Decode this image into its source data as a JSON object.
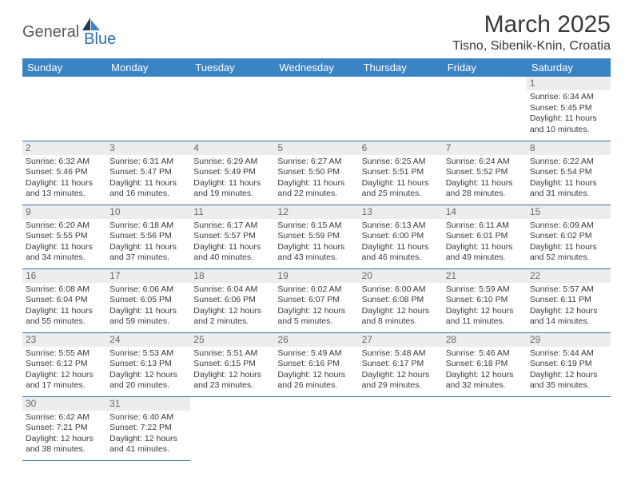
{
  "logo": {
    "general": "General",
    "blue": "Blue"
  },
  "title": "March 2025",
  "location": "Tisno, Sibenik-Knin, Croatia",
  "colors": {
    "header_bg": "#3b84c4",
    "header_text": "#ffffff",
    "rule": "#2f6faa",
    "day_bg": "#ededed",
    "day_text": "#6a6a6a",
    "body_text": "#3a3a3a",
    "logo_blue": "#2f6faa",
    "logo_gray": "#5a5a5a"
  },
  "weekdays": [
    "Sunday",
    "Monday",
    "Tuesday",
    "Wednesday",
    "Thursday",
    "Friday",
    "Saturday"
  ],
  "weeks": [
    [
      null,
      null,
      null,
      null,
      null,
      null,
      {
        "n": "1",
        "sr": "Sunrise: 6:34 AM",
        "ss": "Sunset: 5:45 PM",
        "dl1": "Daylight: 11 hours",
        "dl2": "and 10 minutes."
      }
    ],
    [
      {
        "n": "2",
        "sr": "Sunrise: 6:32 AM",
        "ss": "Sunset: 5:46 PM",
        "dl1": "Daylight: 11 hours",
        "dl2": "and 13 minutes."
      },
      {
        "n": "3",
        "sr": "Sunrise: 6:31 AM",
        "ss": "Sunset: 5:47 PM",
        "dl1": "Daylight: 11 hours",
        "dl2": "and 16 minutes."
      },
      {
        "n": "4",
        "sr": "Sunrise: 6:29 AM",
        "ss": "Sunset: 5:49 PM",
        "dl1": "Daylight: 11 hours",
        "dl2": "and 19 minutes."
      },
      {
        "n": "5",
        "sr": "Sunrise: 6:27 AM",
        "ss": "Sunset: 5:50 PM",
        "dl1": "Daylight: 11 hours",
        "dl2": "and 22 minutes."
      },
      {
        "n": "6",
        "sr": "Sunrise: 6:25 AM",
        "ss": "Sunset: 5:51 PM",
        "dl1": "Daylight: 11 hours",
        "dl2": "and 25 minutes."
      },
      {
        "n": "7",
        "sr": "Sunrise: 6:24 AM",
        "ss": "Sunset: 5:52 PM",
        "dl1": "Daylight: 11 hours",
        "dl2": "and 28 minutes."
      },
      {
        "n": "8",
        "sr": "Sunrise: 6:22 AM",
        "ss": "Sunset: 5:54 PM",
        "dl1": "Daylight: 11 hours",
        "dl2": "and 31 minutes."
      }
    ],
    [
      {
        "n": "9",
        "sr": "Sunrise: 6:20 AM",
        "ss": "Sunset: 5:55 PM",
        "dl1": "Daylight: 11 hours",
        "dl2": "and 34 minutes."
      },
      {
        "n": "10",
        "sr": "Sunrise: 6:18 AM",
        "ss": "Sunset: 5:56 PM",
        "dl1": "Daylight: 11 hours",
        "dl2": "and 37 minutes."
      },
      {
        "n": "11",
        "sr": "Sunrise: 6:17 AM",
        "ss": "Sunset: 5:57 PM",
        "dl1": "Daylight: 11 hours",
        "dl2": "and 40 minutes."
      },
      {
        "n": "12",
        "sr": "Sunrise: 6:15 AM",
        "ss": "Sunset: 5:59 PM",
        "dl1": "Daylight: 11 hours",
        "dl2": "and 43 minutes."
      },
      {
        "n": "13",
        "sr": "Sunrise: 6:13 AM",
        "ss": "Sunset: 6:00 PM",
        "dl1": "Daylight: 11 hours",
        "dl2": "and 46 minutes."
      },
      {
        "n": "14",
        "sr": "Sunrise: 6:11 AM",
        "ss": "Sunset: 6:01 PM",
        "dl1": "Daylight: 11 hours",
        "dl2": "and 49 minutes."
      },
      {
        "n": "15",
        "sr": "Sunrise: 6:09 AM",
        "ss": "Sunset: 6:02 PM",
        "dl1": "Daylight: 11 hours",
        "dl2": "and 52 minutes."
      }
    ],
    [
      {
        "n": "16",
        "sr": "Sunrise: 6:08 AM",
        "ss": "Sunset: 6:04 PM",
        "dl1": "Daylight: 11 hours",
        "dl2": "and 55 minutes."
      },
      {
        "n": "17",
        "sr": "Sunrise: 6:06 AM",
        "ss": "Sunset: 6:05 PM",
        "dl1": "Daylight: 11 hours",
        "dl2": "and 59 minutes."
      },
      {
        "n": "18",
        "sr": "Sunrise: 6:04 AM",
        "ss": "Sunset: 6:06 PM",
        "dl1": "Daylight: 12 hours",
        "dl2": "and 2 minutes."
      },
      {
        "n": "19",
        "sr": "Sunrise: 6:02 AM",
        "ss": "Sunset: 6:07 PM",
        "dl1": "Daylight: 12 hours",
        "dl2": "and 5 minutes."
      },
      {
        "n": "20",
        "sr": "Sunrise: 6:00 AM",
        "ss": "Sunset: 6:08 PM",
        "dl1": "Daylight: 12 hours",
        "dl2": "and 8 minutes."
      },
      {
        "n": "21",
        "sr": "Sunrise: 5:59 AM",
        "ss": "Sunset: 6:10 PM",
        "dl1": "Daylight: 12 hours",
        "dl2": "and 11 minutes."
      },
      {
        "n": "22",
        "sr": "Sunrise: 5:57 AM",
        "ss": "Sunset: 6:11 PM",
        "dl1": "Daylight: 12 hours",
        "dl2": "and 14 minutes."
      }
    ],
    [
      {
        "n": "23",
        "sr": "Sunrise: 5:55 AM",
        "ss": "Sunset: 6:12 PM",
        "dl1": "Daylight: 12 hours",
        "dl2": "and 17 minutes."
      },
      {
        "n": "24",
        "sr": "Sunrise: 5:53 AM",
        "ss": "Sunset: 6:13 PM",
        "dl1": "Daylight: 12 hours",
        "dl2": "and 20 minutes."
      },
      {
        "n": "25",
        "sr": "Sunrise: 5:51 AM",
        "ss": "Sunset: 6:15 PM",
        "dl1": "Daylight: 12 hours",
        "dl2": "and 23 minutes."
      },
      {
        "n": "26",
        "sr": "Sunrise: 5:49 AM",
        "ss": "Sunset: 6:16 PM",
        "dl1": "Daylight: 12 hours",
        "dl2": "and 26 minutes."
      },
      {
        "n": "27",
        "sr": "Sunrise: 5:48 AM",
        "ss": "Sunset: 6:17 PM",
        "dl1": "Daylight: 12 hours",
        "dl2": "and 29 minutes."
      },
      {
        "n": "28",
        "sr": "Sunrise: 5:46 AM",
        "ss": "Sunset: 6:18 PM",
        "dl1": "Daylight: 12 hours",
        "dl2": "and 32 minutes."
      },
      {
        "n": "29",
        "sr": "Sunrise: 5:44 AM",
        "ss": "Sunset: 6:19 PM",
        "dl1": "Daylight: 12 hours",
        "dl2": "and 35 minutes."
      }
    ],
    [
      {
        "n": "30",
        "sr": "Sunrise: 6:42 AM",
        "ss": "Sunset: 7:21 PM",
        "dl1": "Daylight: 12 hours",
        "dl2": "and 38 minutes."
      },
      {
        "n": "31",
        "sr": "Sunrise: 6:40 AM",
        "ss": "Sunset: 7:22 PM",
        "dl1": "Daylight: 12 hours",
        "dl2": "and 41 minutes."
      },
      null,
      null,
      null,
      null,
      null
    ]
  ]
}
